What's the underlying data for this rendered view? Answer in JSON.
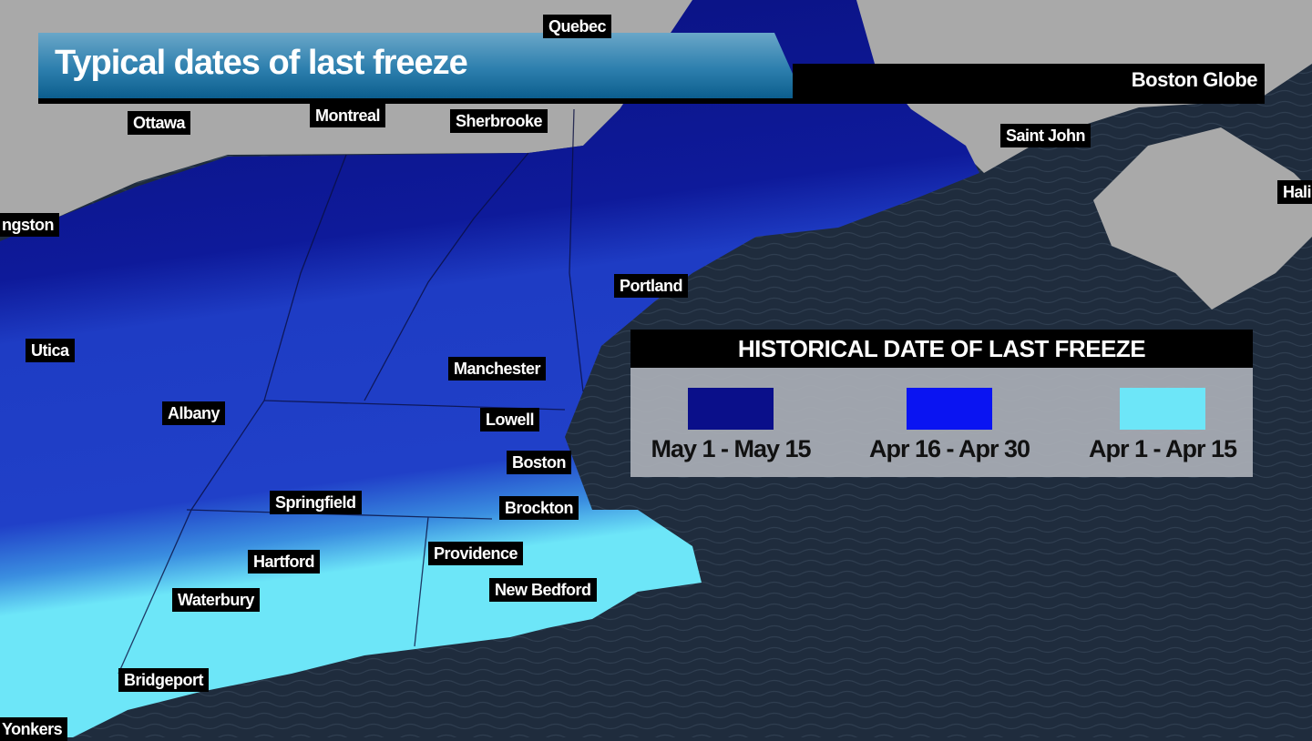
{
  "header": {
    "title": "Typical dates of last freeze",
    "source": "Boston Globe"
  },
  "legend": {
    "title": "HISTORICAL DATE OF LAST FREEZE",
    "items": [
      {
        "label": "May 1 - May 15",
        "color": "#0a0f8a"
      },
      {
        "label": "Apr 16 - Apr 30",
        "color": "#0a14f2"
      },
      {
        "label": "Apr 1 - Apr 15",
        "color": "#6de6f8"
      }
    ]
  },
  "cities": {
    "quebec": "Quebec",
    "ottawa": "Ottawa",
    "montreal": "Montreal",
    "sherbrooke": "Sherbrooke",
    "saint_john": "Saint John",
    "halifax": "Hali",
    "kingston": "ngston",
    "portland": "Portland",
    "utica": "Utica",
    "manchester": "Manchester",
    "albany": "Albany",
    "lowell": "Lowell",
    "boston": "Boston",
    "springfield": "Springfield",
    "brockton": "Brockton",
    "providence": "Providence",
    "hartford": "Hartford",
    "new_bedford": "New Bedford",
    "waterbury": "Waterbury",
    "bridgeport": "Bridgeport",
    "yonkers": "Yonkers"
  },
  "colors": {
    "land": "#a9a9a9",
    "ocean": "#1f2c3d",
    "title_bar": "#2d7fae"
  }
}
